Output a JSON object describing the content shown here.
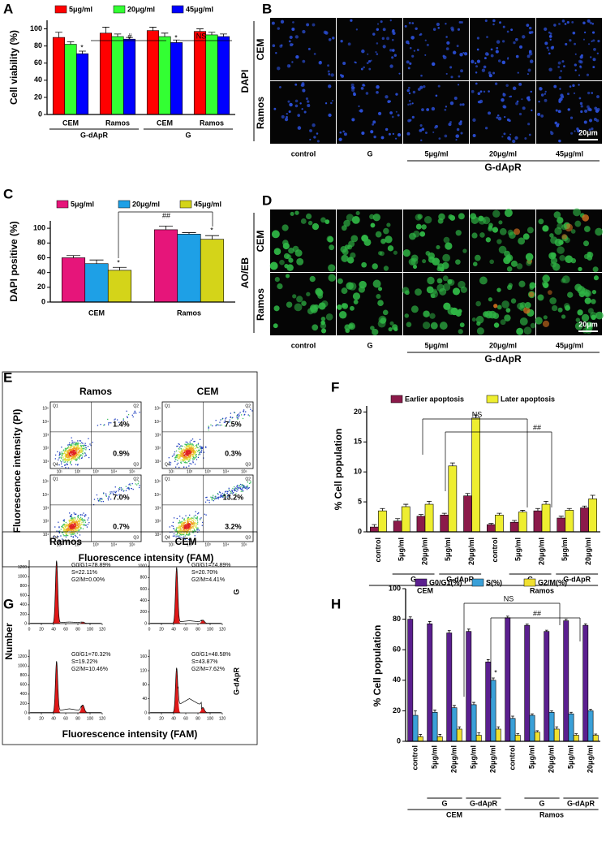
{
  "chart_data": [
    {
      "type": "bar",
      "panel": "A",
      "ylabel": "Cell viability (%)",
      "categories": [
        "CEM",
        "Ramos",
        "CEM",
        "Ramos"
      ],
      "groups": [
        "G-dApR",
        "G"
      ],
      "series": [
        {
          "name": "5μg/ml",
          "color": "#ff0000",
          "values": [
            90,
            95,
            98,
            97
          ],
          "errors": [
            6,
            7,
            4,
            3
          ]
        },
        {
          "name": "20μg/ml",
          "color": "#33ff33",
          "values": [
            82,
            91,
            91,
            93
          ],
          "errors": [
            3,
            3,
            4,
            3
          ]
        },
        {
          "name": "45μg/ml",
          "color": "#0000ff",
          "values": [
            71,
            88,
            84,
            91
          ],
          "errors": [
            3,
            2,
            3,
            3
          ]
        }
      ],
      "ylim": [
        0,
        110
      ],
      "yticks": [
        0,
        20,
        40,
        60,
        80,
        100
      ],
      "annotations": [
        "*",
        "#",
        "*",
        "NS"
      ]
    },
    {
      "type": "bar",
      "panel": "C",
      "ylabel": "DAPI positive (%)",
      "categories": [
        "CEM",
        "Ramos"
      ],
      "series": [
        {
          "name": "5μg/ml",
          "color": "#e6157a",
          "values": [
            60,
            98
          ],
          "errors": [
            3,
            5
          ]
        },
        {
          "name": "20μg/ml",
          "color": "#1ea0e6",
          "values": [
            52,
            92
          ],
          "errors": [
            5,
            2
          ]
        },
        {
          "name": "45μg/ml",
          "color": "#d4d419",
          "values": [
            43,
            85
          ],
          "errors": [
            4,
            5
          ]
        }
      ],
      "ylim": [
        0,
        110
      ],
      "yticks": [
        0,
        20,
        40,
        60,
        80,
        100
      ],
      "annotations": [
        "*",
        "*",
        "##"
      ]
    },
    {
      "type": "bar",
      "panel": "F",
      "ylabel": "% Cell population",
      "categories": [
        "control",
        "5μg/ml",
        "20μg/ml",
        "5μg/ml",
        "20μg/ml",
        "control",
        "5μg/ml",
        "20μg/ml",
        "5μg/ml",
        "20μg/ml"
      ],
      "subgroups": [
        "G",
        "G-dApR",
        "G",
        "G-dApR"
      ],
      "groups": [
        "CEM",
        "Ramos"
      ],
      "series": [
        {
          "name": "Earlier apoptosis",
          "color": "#8b1a4a",
          "values": [
            0.8,
            1.8,
            2.6,
            2.8,
            6.0,
            1.2,
            1.6,
            3.5,
            2.3,
            4.0
          ],
          "errors": [
            0.4,
            0.4,
            0.3,
            0.3,
            0.4,
            0.2,
            0.3,
            0.4,
            0.3,
            0.3
          ]
        },
        {
          "name": "Later apoptosis",
          "color": "#eeee30",
          "values": [
            3.5,
            4.2,
            4.6,
            11.0,
            19.0,
            2.8,
            3.3,
            4.6,
            3.6,
            5.5
          ],
          "errors": [
            0.4,
            0.4,
            0.5,
            0.5,
            0.5,
            0.3,
            0.3,
            0.5,
            0.3,
            0.6
          ]
        }
      ],
      "ylim": [
        0,
        21
      ],
      "yticks": [
        0,
        5,
        10,
        15,
        20
      ],
      "annotations": [
        "NS",
        "##"
      ]
    },
    {
      "type": "bar",
      "panel": "H",
      "ylabel": "% Cell population",
      "categories": [
        "control",
        "5μg/ml",
        "20μg/ml",
        "5μg/ml",
        "20μg/ml",
        "control",
        "5μg/ml",
        "20μg/ml",
        "5μg/ml",
        "20μg/ml"
      ],
      "subgroups": [
        "G",
        "G-dApR",
        "G",
        "G-dApR"
      ],
      "groups": [
        "CEM",
        "Ramos"
      ],
      "series": [
        {
          "name": "G0/G1(%)",
          "color": "#5b1f8f",
          "values": [
            80,
            77,
            71,
            72,
            52,
            81,
            76,
            72,
            79,
            76
          ],
          "errors": [
            1.5,
            1.5,
            1.5,
            1.5,
            1.5,
            1,
            0.8,
            0.8,
            1,
            1
          ]
        },
        {
          "name": "S(%)",
          "color": "#3aa0d8",
          "values": [
            17,
            19,
            22,
            24,
            40,
            15,
            17,
            19,
            18,
            20
          ],
          "errors": [
            3,
            1.5,
            1.5,
            1.5,
            1.5,
            1.5,
            1,
            1,
            1,
            1
          ]
        },
        {
          "name": "G2/M(%)",
          "color": "#f0e030",
          "values": [
            3,
            3,
            8,
            4,
            8,
            4,
            6,
            8,
            4,
            4
          ],
          "errors": [
            1.5,
            1.5,
            1.5,
            1.5,
            1.5,
            1,
            1,
            1.5,
            1,
            0.8
          ]
        }
      ],
      "ylim": [
        0,
        100
      ],
      "yticks": [
        0,
        20,
        40,
        60,
        80,
        100
      ],
      "annotations": [
        "NS",
        "##",
        "*"
      ]
    }
  ],
  "panels": {
    "B": {
      "panel": "B",
      "stain": "DAPI",
      "rows": [
        "CEM",
        "Ramos"
      ],
      "columns": [
        "control",
        "G",
        "5μg/ml",
        "20μg/ml",
        "45μg/ml"
      ],
      "treatment": "G-dApR",
      "scale_bar": "20μm"
    },
    "D": {
      "panel": "D",
      "stain": "AO/EB",
      "rows": [
        "CEM",
        "Ramos"
      ],
      "columns": [
        "control",
        "G",
        "5μg/ml",
        "20μg/ml",
        "45μg/ml"
      ],
      "treatment": "G-dApR",
      "scale_bar": "20μm"
    },
    "E": {
      "panel": "E",
      "columns": [
        "Ramos",
        "CEM"
      ],
      "ylabel": "Fluorescence intensity (PI)",
      "xlabel": "Fluorescence intensity (FAM)",
      "quadrants": [
        "Q1",
        "Q2",
        "Q3",
        "Q4"
      ],
      "log_ticks": [
        "10¹",
        "10²",
        "10³",
        "10⁴",
        "10⁵"
      ],
      "plots": [
        {
          "upper": "1.4%",
          "lower": "0.9%"
        },
        {
          "upper": "7.5%",
          "lower": "0.3%"
        },
        {
          "upper": "7.0%",
          "lower": "0.7%"
        },
        {
          "upper": "13.2%",
          "lower": "3.2%"
        }
      ]
    },
    "G": {
      "panel": "G",
      "columns": [
        "Ramos",
        "CEM"
      ],
      "rows": [
        "G",
        "G-dApR"
      ],
      "ylabel": "Number",
      "xlabel": "Fluorescence intensity (FAM)",
      "xticks": [
        0,
        20,
        40,
        60,
        80,
        100,
        120
      ],
      "plots": [
        {
          "stats": [
            "G0/G1=78.89%",
            "S=22.11%",
            "G2/M=0.00%"
          ],
          "ylim": [
            0,
            1350
          ],
          "yticks": [
            0,
            200,
            400,
            600,
            800,
            1000,
            1200
          ]
        },
        {
          "stats": [
            "G0/G1=74.89%",
            "S=20.70%",
            "G2/M=4.41%"
          ],
          "ylim": [
            0,
            1100
          ],
          "yticks": [
            0,
            200,
            400,
            600,
            800,
            1000
          ]
        },
        {
          "stats": [
            "G0/G1=70.32%",
            "S=19.22%",
            "G2/M=10.46%"
          ],
          "ylim": [
            0,
            1350
          ],
          "yticks": [
            0,
            200,
            400,
            600,
            800,
            1000,
            1200
          ]
        },
        {
          "stats": [
            "G0/G1=48.58%",
            "S=43.87%",
            "G2/M=7.62%"
          ],
          "ylim": [
            0,
            180
          ],
          "yticks": [
            0,
            40,
            80,
            120,
            160
          ]
        }
      ]
    }
  }
}
